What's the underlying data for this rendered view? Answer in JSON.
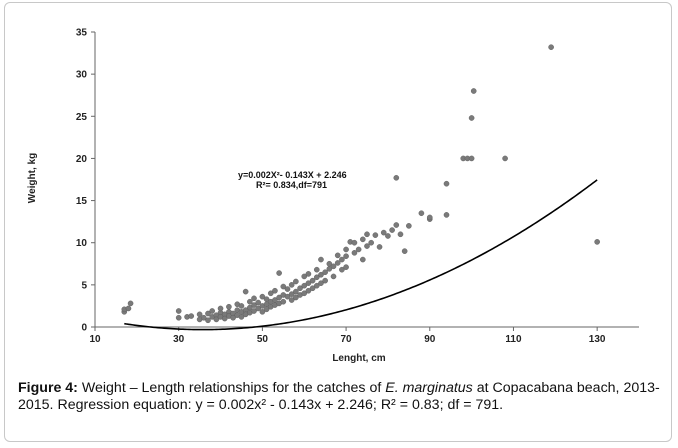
{
  "chart_data": {
    "type": "scatter",
    "xlabel": "Lenght, cm",
    "ylabel": "Weight, kg",
    "xlim": [
      10,
      140
    ],
    "ylim": [
      0,
      35
    ],
    "x_ticks": [
      "10",
      "30",
      "50",
      "70",
      "90",
      "110",
      "130"
    ],
    "y_ticks": [
      "0",
      "5",
      "10",
      "15",
      "20",
      "25",
      "30",
      "35"
    ],
    "equation_line1": "y=0.002X²- 0.143X + 2.246",
    "equation_line2": "R²= 0.834,df=791",
    "fit": {
      "a": 0.002,
      "b": -0.143,
      "c": 2.246,
      "x_range": [
        17,
        130
      ]
    },
    "marker_color": "#7a7a7a",
    "points": [
      {
        "x": 17,
        "y": 1.8
      },
      {
        "x": 17,
        "y": 2.1
      },
      {
        "x": 18,
        "y": 2.2
      },
      {
        "x": 18.5,
        "y": 2.8
      },
      {
        "x": 30,
        "y": 1.9
      },
      {
        "x": 30,
        "y": 1.1
      },
      {
        "x": 32,
        "y": 1.2
      },
      {
        "x": 33,
        "y": 1.3
      },
      {
        "x": 35,
        "y": 0.9
      },
      {
        "x": 35,
        "y": 1.5
      },
      {
        "x": 36,
        "y": 1.1
      },
      {
        "x": 37,
        "y": 1.6
      },
      {
        "x": 37,
        "y": 0.8
      },
      {
        "x": 38,
        "y": 1.2
      },
      {
        "x": 38,
        "y": 1.9
      },
      {
        "x": 39,
        "y": 1.4
      },
      {
        "x": 39,
        "y": 0.9
      },
      {
        "x": 40,
        "y": 1.7
      },
      {
        "x": 40,
        "y": 1.2
      },
      {
        "x": 40,
        "y": 2.2
      },
      {
        "x": 41,
        "y": 1.5
      },
      {
        "x": 41,
        "y": 1.0
      },
      {
        "x": 42,
        "y": 1.8
      },
      {
        "x": 42,
        "y": 1.3
      },
      {
        "x": 42,
        "y": 2.4
      },
      {
        "x": 43,
        "y": 1.6
      },
      {
        "x": 43,
        "y": 1.1
      },
      {
        "x": 44,
        "y": 2.0
      },
      {
        "x": 44,
        "y": 1.4
      },
      {
        "x": 44,
        "y": 2.7
      },
      {
        "x": 45,
        "y": 1.8
      },
      {
        "x": 45,
        "y": 1.2
      },
      {
        "x": 45,
        "y": 2.5
      },
      {
        "x": 46,
        "y": 4.2
      },
      {
        "x": 46,
        "y": 2.0
      },
      {
        "x": 46,
        "y": 1.5
      },
      {
        "x": 47,
        "y": 2.3
      },
      {
        "x": 47,
        "y": 1.7
      },
      {
        "x": 47,
        "y": 3.0
      },
      {
        "x": 48,
        "y": 2.6
      },
      {
        "x": 48,
        "y": 1.9
      },
      {
        "x": 48,
        "y": 3.4
      },
      {
        "x": 49,
        "y": 2.2
      },
      {
        "x": 49,
        "y": 2.9
      },
      {
        "x": 50,
        "y": 2.5
      },
      {
        "x": 50,
        "y": 1.8
      },
      {
        "x": 50,
        "y": 3.6
      },
      {
        "x": 51,
        "y": 2.7
      },
      {
        "x": 51,
        "y": 2.1
      },
      {
        "x": 51,
        "y": 3.3
      },
      {
        "x": 52,
        "y": 3.0
      },
      {
        "x": 52,
        "y": 2.4
      },
      {
        "x": 52,
        "y": 4.0
      },
      {
        "x": 53,
        "y": 3.2
      },
      {
        "x": 53,
        "y": 2.6
      },
      {
        "x": 53,
        "y": 4.3
      },
      {
        "x": 54,
        "y": 3.5
      },
      {
        "x": 54,
        "y": 2.8
      },
      {
        "x": 54,
        "y": 6.4
      },
      {
        "x": 55,
        "y": 3.8
      },
      {
        "x": 55,
        "y": 3.0
      },
      {
        "x": 55,
        "y": 4.8
      },
      {
        "x": 56,
        "y": 3.6
      },
      {
        "x": 56,
        "y": 4.5
      },
      {
        "x": 57,
        "y": 3.9
      },
      {
        "x": 57,
        "y": 3.2
      },
      {
        "x": 57,
        "y": 5.0
      },
      {
        "x": 58,
        "y": 4.2
      },
      {
        "x": 58,
        "y": 3.5
      },
      {
        "x": 58,
        "y": 5.4
      },
      {
        "x": 59,
        "y": 4.6
      },
      {
        "x": 59,
        "y": 3.8
      },
      {
        "x": 60,
        "y": 4.9
      },
      {
        "x": 60,
        "y": 4.0
      },
      {
        "x": 60,
        "y": 6.0
      },
      {
        "x": 61,
        "y": 5.2
      },
      {
        "x": 61,
        "y": 4.3
      },
      {
        "x": 61,
        "y": 6.3
      },
      {
        "x": 62,
        "y": 5.5
      },
      {
        "x": 62,
        "y": 4.6
      },
      {
        "x": 63,
        "y": 5.9
      },
      {
        "x": 63,
        "y": 4.9
      },
      {
        "x": 63,
        "y": 6.8
      },
      {
        "x": 64,
        "y": 6.2
      },
      {
        "x": 64,
        "y": 8.0
      },
      {
        "x": 64,
        "y": 5.2
      },
      {
        "x": 65,
        "y": 6.5
      },
      {
        "x": 65,
        "y": 5.5
      },
      {
        "x": 66,
        "y": 6.9
      },
      {
        "x": 66,
        "y": 7.5
      },
      {
        "x": 67,
        "y": 7.2
      },
      {
        "x": 67,
        "y": 6.0
      },
      {
        "x": 68,
        "y": 7.6
      },
      {
        "x": 68,
        "y": 8.5
      },
      {
        "x": 69,
        "y": 8.0
      },
      {
        "x": 69,
        "y": 6.8
      },
      {
        "x": 70,
        "y": 8.4
      },
      {
        "x": 70,
        "y": 9.2
      },
      {
        "x": 70,
        "y": 7.1
      },
      {
        "x": 71,
        "y": 10.1
      },
      {
        "x": 72,
        "y": 8.8
      },
      {
        "x": 72,
        "y": 10.0
      },
      {
        "x": 73,
        "y": 9.2
      },
      {
        "x": 74,
        "y": 10.4
      },
      {
        "x": 74,
        "y": 8.0
      },
      {
        "x": 75,
        "y": 9.6
      },
      {
        "x": 75,
        "y": 11.0
      },
      {
        "x": 76,
        "y": 10.0
      },
      {
        "x": 77,
        "y": 10.9
      },
      {
        "x": 78,
        "y": 9.5
      },
      {
        "x": 79,
        "y": 11.2
      },
      {
        "x": 80,
        "y": 10.8
      },
      {
        "x": 81,
        "y": 11.5
      },
      {
        "x": 82,
        "y": 17.7
      },
      {
        "x": 82,
        "y": 12.1
      },
      {
        "x": 83,
        "y": 11.0
      },
      {
        "x": 84,
        "y": 9.0
      },
      {
        "x": 85,
        "y": 12.0
      },
      {
        "x": 88,
        "y": 13.5
      },
      {
        "x": 90,
        "y": 12.8
      },
      {
        "x": 90,
        "y": 13.0
      },
      {
        "x": 94,
        "y": 13.3
      },
      {
        "x": 94,
        "y": 17.0
      },
      {
        "x": 98,
        "y": 20.0
      },
      {
        "x": 99,
        "y": 20.0
      },
      {
        "x": 100,
        "y": 20.0
      },
      {
        "x": 100,
        "y": 24.8
      },
      {
        "x": 100.5,
        "y": 28.0
      },
      {
        "x": 108,
        "y": 20.0
      },
      {
        "x": 119,
        "y": 33.2
      },
      {
        "x": 130,
        "y": 10.1
      }
    ]
  },
  "caption": {
    "label": "Figure 4:",
    "text_before_species": " Weight – Length relationships for the catches of ",
    "species": "E. marginatus",
    "text_after_species": " at Copacabana beach, 2013-2015. Regression equation:  y = 0.002x² - 0.143x + 2.246; R² = 0.83; df = 791."
  }
}
